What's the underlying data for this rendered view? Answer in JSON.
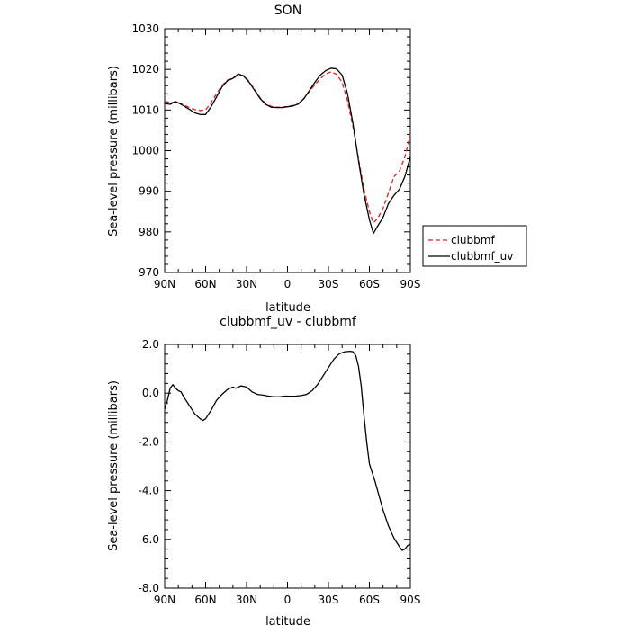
{
  "chart_data": [
    {
      "type": "line",
      "title": "SON",
      "xlabel": "latitude",
      "ylabel": "Sea-level pressure (millibars)",
      "xlim": [
        90,
        -90
      ],
      "ylim": [
        970,
        1030
      ],
      "xticks": [
        90,
        60,
        30,
        0,
        -30,
        -60,
        -90
      ],
      "xtick_labels": [
        "90N",
        "60N",
        "30N",
        "0",
        "30S",
        "60S",
        "90S"
      ],
      "yticks": [
        970,
        980,
        990,
        1000,
        1010,
        1020,
        1030
      ],
      "ytick_labels": [
        "970",
        "980",
        "990",
        "1000",
        "1010",
        "1020",
        "1030"
      ],
      "legend_position": "outside-right",
      "series": [
        {
          "name": "clubbmf",
          "color": "#dd2020",
          "dash": "dashed",
          "points": [
            [
              90,
              1012.2
            ],
            [
              86,
              1011.8
            ],
            [
              82,
              1012.0
            ],
            [
              78,
              1011.6
            ],
            [
              72,
              1010.6
            ],
            [
              68,
              1010.1
            ],
            [
              64,
              1009.9
            ],
            [
              60,
              1010.0
            ],
            [
              56,
              1011.8
            ],
            [
              52,
              1014.0
            ],
            [
              48,
              1016.0
            ],
            [
              44,
              1017.4
            ],
            [
              40,
              1017.8
            ],
            [
              36,
              1018.6
            ],
            [
              32,
              1018.5
            ],
            [
              28,
              1017.0
            ],
            [
              24,
              1015.0
            ],
            [
              20,
              1013.0
            ],
            [
              16,
              1011.6
            ],
            [
              12,
              1010.9
            ],
            [
              8,
              1010.7
            ],
            [
              4,
              1010.7
            ],
            [
              0,
              1010.9
            ],
            [
              -4,
              1011.1
            ],
            [
              -8,
              1011.6
            ],
            [
              -12,
              1012.8
            ],
            [
              -16,
              1014.6
            ],
            [
              -20,
              1016.2
            ],
            [
              -24,
              1017.7
            ],
            [
              -28,
              1018.9
            ],
            [
              -32,
              1019.4
            ],
            [
              -36,
              1018.8
            ],
            [
              -40,
              1016.8
            ],
            [
              -44,
              1012.3
            ],
            [
              -48,
              1005.8
            ],
            [
              -52,
              998.0
            ],
            [
              -56,
              990.6
            ],
            [
              -60,
              985.0
            ],
            [
              -63,
              982.2
            ],
            [
              -66,
              983.3
            ],
            [
              -70,
              985.8
            ],
            [
              -74,
              989.6
            ],
            [
              -78,
              993.6
            ],
            [
              -82,
              995.0
            ],
            [
              -86,
              998.4
            ],
            [
              -90,
              1004.0
            ]
          ]
        },
        {
          "name": "clubbmf_uv",
          "color": "#000000",
          "dash": "solid",
          "points": [
            [
              90,
              1011.6
            ],
            [
              86,
              1011.4
            ],
            [
              82,
              1012.1
            ],
            [
              78,
              1011.4
            ],
            [
              72,
              1010.2
            ],
            [
              68,
              1009.3
            ],
            [
              64,
              1008.9
            ],
            [
              60,
              1008.9
            ],
            [
              56,
              1010.8
            ],
            [
              52,
              1013.2
            ],
            [
              48,
              1015.7
            ],
            [
              44,
              1017.2
            ],
            [
              40,
              1017.8
            ],
            [
              36,
              1018.9
            ],
            [
              32,
              1018.3
            ],
            [
              28,
              1016.8
            ],
            [
              24,
              1014.8
            ],
            [
              20,
              1012.8
            ],
            [
              16,
              1011.4
            ],
            [
              12,
              1010.7
            ],
            [
              8,
              1010.6
            ],
            [
              4,
              1010.6
            ],
            [
              0,
              1010.8
            ],
            [
              -4,
              1011.0
            ],
            [
              -8,
              1011.5
            ],
            [
              -12,
              1012.8
            ],
            [
              -16,
              1014.8
            ],
            [
              -20,
              1016.8
            ],
            [
              -24,
              1018.6
            ],
            [
              -28,
              1019.7
            ],
            [
              -32,
              1020.3
            ],
            [
              -36,
              1020.1
            ],
            [
              -40,
              1018.6
            ],
            [
              -44,
              1014.0
            ],
            [
              -48,
              1006.6
            ],
            [
              -52,
              997.5
            ],
            [
              -56,
              989.3
            ],
            [
              -60,
              983.0
            ],
            [
              -63,
              979.6
            ],
            [
              -66,
              981.4
            ],
            [
              -70,
              983.6
            ],
            [
              -74,
              987.0
            ],
            [
              -78,
              989.0
            ],
            [
              -82,
              990.5
            ],
            [
              -86,
              993.6
            ],
            [
              -90,
              998.5
            ]
          ]
        }
      ]
    },
    {
      "type": "line",
      "title": "clubbmf_uv - clubbmf",
      "xlabel": "latitude",
      "ylabel": "Sea-level pressure (millibars)",
      "xlim": [
        90,
        -90
      ],
      "ylim": [
        -8,
        2
      ],
      "xticks": [
        90,
        60,
        30,
        0,
        -30,
        -60,
        -90
      ],
      "xtick_labels": [
        "90N",
        "60N",
        "30N",
        "0",
        "30S",
        "60S",
        "90S"
      ],
      "yticks": [
        -8,
        -6,
        -4,
        -2,
        0,
        2
      ],
      "ytick_labels": [
        "-8.0",
        "-6.0",
        "-4.0",
        "-2.0",
        "0.0",
        "2.0"
      ],
      "series": [
        {
          "color": "#000000",
          "dash": "solid",
          "points": [
            [
              90,
              -0.65
            ],
            [
              88,
              -0.3
            ],
            [
              86,
              0.2
            ],
            [
              84,
              0.35
            ],
            [
              82,
              0.2
            ],
            [
              80,
              0.1
            ],
            [
              78,
              0.05
            ],
            [
              76,
              -0.15
            ],
            [
              72,
              -0.5
            ],
            [
              68,
              -0.85
            ],
            [
              64,
              -1.05
            ],
            [
              62,
              -1.12
            ],
            [
              60,
              -1.05
            ],
            [
              56,
              -0.7
            ],
            [
              52,
              -0.3
            ],
            [
              48,
              -0.05
            ],
            [
              44,
              0.15
            ],
            [
              40,
              0.25
            ],
            [
              38,
              0.2
            ],
            [
              34,
              0.3
            ],
            [
              30,
              0.25
            ],
            [
              26,
              0.05
            ],
            [
              22,
              -0.05
            ],
            [
              18,
              -0.08
            ],
            [
              14,
              -0.12
            ],
            [
              10,
              -0.15
            ],
            [
              6,
              -0.15
            ],
            [
              2,
              -0.12
            ],
            [
              -2,
              -0.13
            ],
            [
              -6,
              -0.12
            ],
            [
              -10,
              -0.1
            ],
            [
              -14,
              -0.05
            ],
            [
              -18,
              0.1
            ],
            [
              -22,
              0.35
            ],
            [
              -26,
              0.7
            ],
            [
              -30,
              1.05
            ],
            [
              -34,
              1.4
            ],
            [
              -38,
              1.62
            ],
            [
              -42,
              1.7
            ],
            [
              -46,
              1.72
            ],
            [
              -48,
              1.7
            ],
            [
              -50,
              1.55
            ],
            [
              -52,
              1.1
            ],
            [
              -54,
              0.3
            ],
            [
              -56,
              -0.9
            ],
            [
              -58,
              -2.0
            ],
            [
              -60,
              -2.9
            ],
            [
              -64,
              -3.6
            ],
            [
              -66,
              -4.0
            ],
            [
              -70,
              -4.8
            ],
            [
              -74,
              -5.45
            ],
            [
              -78,
              -5.95
            ],
            [
              -82,
              -6.3
            ],
            [
              -84,
              -6.45
            ],
            [
              -86,
              -6.4
            ],
            [
              -88,
              -6.25
            ],
            [
              -90,
              -6.2
            ]
          ]
        }
      ]
    }
  ]
}
